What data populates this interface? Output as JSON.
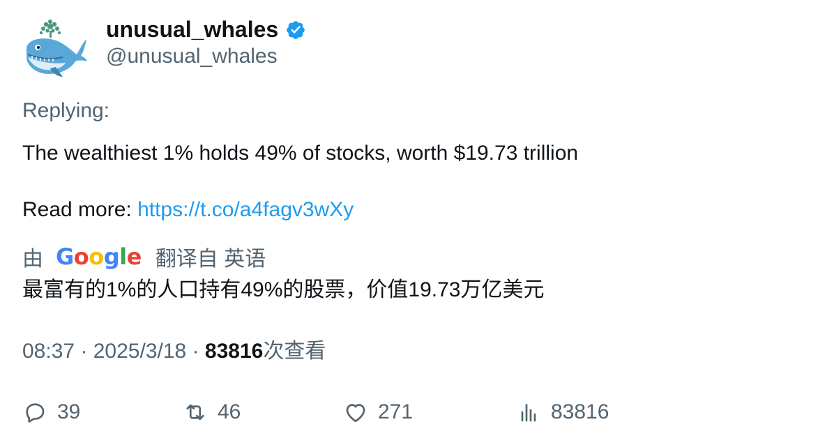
{
  "author": {
    "display_name": "unusual_whales",
    "handle": "@unusual_whales",
    "verified": true
  },
  "tweet": {
    "replying_label": "Replying:",
    "text_line1": "The wealthiest 1% holds 49% of stocks, worth $19.73 trillion",
    "read_more_label": "Read more: ",
    "link_text": "https://t.co/a4fagv3wXy"
  },
  "translation": {
    "by_label": "由",
    "provider": "Google",
    "from_label": "翻译自 英语",
    "text": "最富有的1%的人口持有49%的股票，价值19.73万亿美元"
  },
  "meta": {
    "time": "08:37",
    "separator": " · ",
    "date": "2025/3/18",
    "views_count": "83816",
    "views_label": "次查看"
  },
  "actions": {
    "replies": "39",
    "retweets": "46",
    "likes": "271",
    "views": "83816"
  },
  "colors": {
    "link": "#1d9bf0",
    "verified": "#1d9bf0",
    "secondary_text": "#536471",
    "primary_text": "#0f1419"
  },
  "icons": {
    "avatar": "whale-logo",
    "verified": "verified-badge-icon",
    "reply": "reply-icon",
    "retweet": "retweet-icon",
    "like": "heart-icon",
    "views": "views-bar-chart-icon"
  }
}
